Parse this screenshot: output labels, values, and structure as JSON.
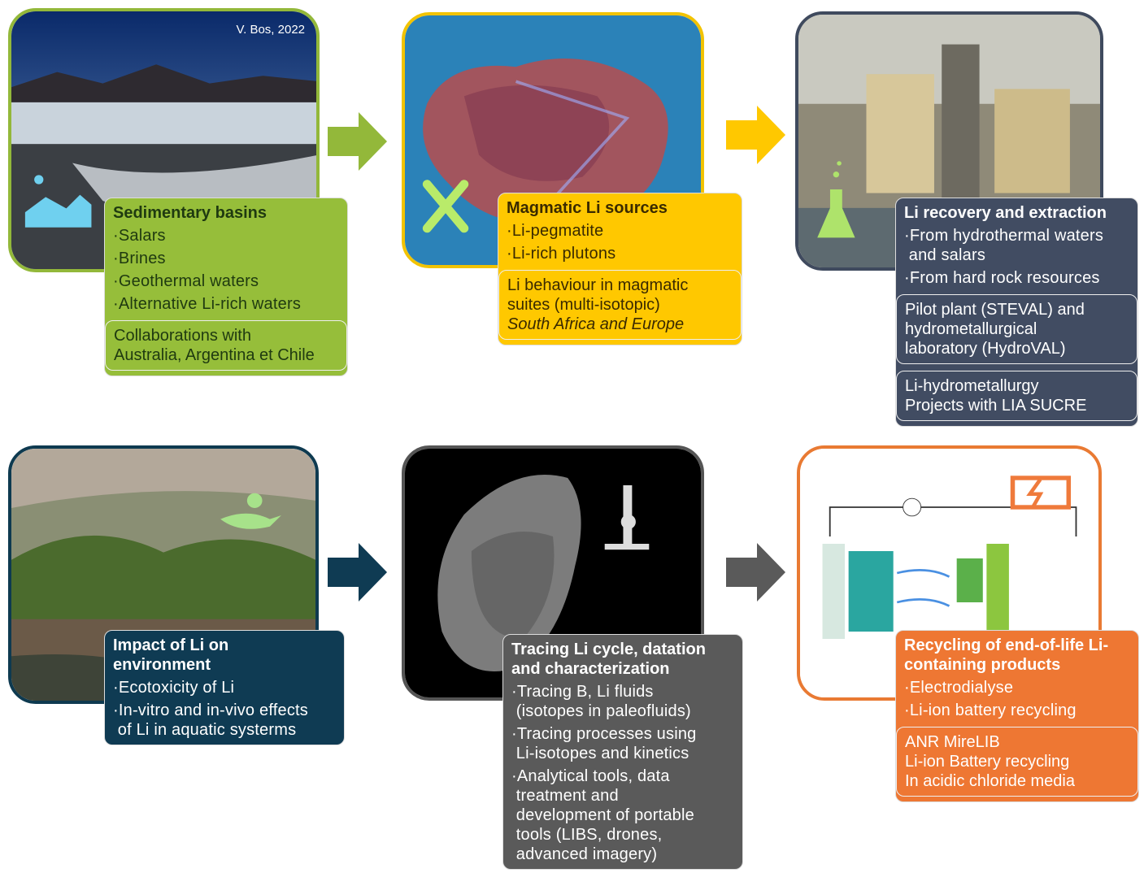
{
  "panels": [
    {
      "credit": "V. Bos, 2022",
      "title": "Sedimentary basins",
      "items": [
        "·Salars",
        "·Brines",
        "·Geothermal waters",
        "·Alternative Li-rich waters"
      ],
      "notes": [
        "Collaborations with\nAustralia, Argentina et Chile"
      ]
    },
    {
      "title": "Magmatic Li sources",
      "items": [
        "·Li-pegmatite",
        "·Li-rich plutons"
      ],
      "notes": [
        "Li behaviour in magmatic\nsuites (multi-isotopic)"
      ],
      "region": "South Africa and Europe"
    },
    {
      "title": "Li  recovery and extraction",
      "items": [
        "·From hydrothermal waters\n and salars",
        "·From hard rock resources"
      ],
      "notes": [
        "Pilot plant (STEVAL) and\nhydrometallurgical\nlaboratory (HydroVAL)",
        "Li-hydrometallurgy\nProjects with LIA SUCRE"
      ]
    },
    {
      "title": "Impact of Li on\nenvironment",
      "items": [
        "·Ecotoxicity of Li",
        "·In-vitro and in-vivo effects\n of Li in aquatic systerms"
      ]
    },
    {
      "title": "Tracing Li cycle, datation\nand characterization",
      "items": [
        "·Tracing B, Li fluids\n (isotopes in paleofluids)",
        "·Tracing processes using\n Li-isotopes and kinetics",
        "·Analytical tools, data\n treatment and\n development of portable\n tools (LIBS, drones,\n advanced imagery)"
      ]
    },
    {
      "title": "Recycling of end-of-life Li-\ncontaining products",
      "items": [
        "·Electrodialyse",
        "·Li-ion battery recycling"
      ],
      "notes": [
        "ANR MireLIB\nLi-ion Battery recycling\nIn acidic chloride media"
      ]
    }
  ]
}
